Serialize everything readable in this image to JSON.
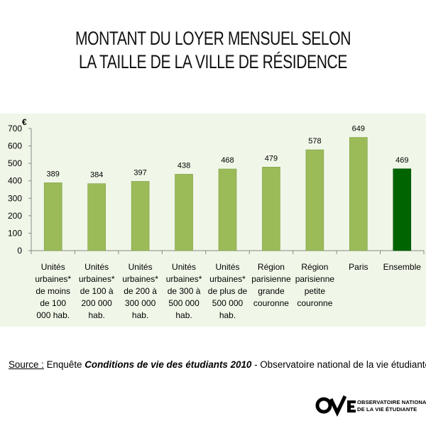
{
  "title_line1": "MONTANT DU LOYER MENSUEL SELON",
  "title_line2": "LA TAILLE DE LA VILLE DE RÉSIDENCE",
  "source": {
    "label": "Source :",
    "text1": " Enquête ",
    "publication": "Conditions de vie des étudiants 2010",
    "text2": " - Observatoire national de la vie étudiante"
  },
  "logo": {
    "line1": "OBSERVATOIRE NATIONAL",
    "line2": "DE LA VIE ÉTUDIANTE"
  },
  "colors": {
    "bar": "#9bbb59",
    "bar_highlight": "#006400",
    "panel": "#f0f7e8"
  },
  "chart_data": {
    "type": "bar",
    "ylabel": "€",
    "ylim": [
      0,
      700
    ],
    "yticks": [
      0,
      100,
      200,
      300,
      400,
      500,
      600,
      700
    ],
    "grid": false,
    "categories": [
      [
        "Unités",
        "urbaines*",
        "de moins",
        "de 100",
        "000 hab."
      ],
      [
        "Unités",
        "urbaines*",
        "de 100 à",
        "200 000",
        "hab."
      ],
      [
        "Unités",
        "urbaines*",
        "de 200 à",
        "300 000",
        "hab."
      ],
      [
        "Unités",
        "urbaines*",
        "de 300 à",
        "500 000",
        "hab."
      ],
      [
        "Unités",
        "urbaines*",
        "de plus de",
        "500 000",
        "hab."
      ],
      [
        "Région",
        "parisienne",
        "grande",
        "couronne"
      ],
      [
        "Région",
        "parisienne",
        "petite",
        "couronne"
      ],
      [
        "Paris"
      ],
      [
        "Ensemble"
      ]
    ],
    "values": [
      389,
      384,
      397,
      438,
      468,
      479,
      578,
      649,
      469
    ],
    "highlight": [
      false,
      false,
      false,
      false,
      false,
      false,
      false,
      false,
      true
    ]
  }
}
